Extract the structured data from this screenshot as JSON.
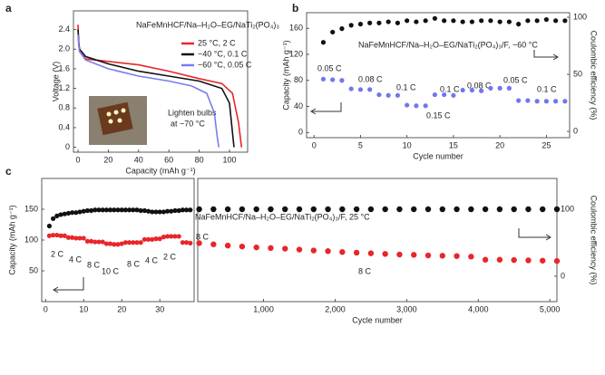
{
  "chart_data": [
    {
      "type": "line",
      "panel": "a",
      "xlabel": "Capacity (mAh g⁻¹)",
      "ylabel": "Voltage (V)",
      "xlim": [
        -3,
        112
      ],
      "xticks": [
        0,
        20,
        40,
        60,
        80,
        100
      ],
      "ylim": [
        -0.1,
        2.78
      ],
      "yticks": [
        0,
        0.4,
        0.8,
        1.2,
        1.6,
        {
          "value": 2,
          "label": "2.0"
        },
        2.4
      ],
      "annotations": [
        "NaFeMnHCF/Na–H₂O–EG/NaTi₂(PO₄)₃",
        "Lighten bulbs",
        "at −70 °C"
      ],
      "series": [
        {
          "name": "25 °C, 2 C",
          "color": "#e8262a",
          "x": [
            0,
            0.5,
            1,
            5,
            20,
            40,
            60,
            80,
            95,
            102,
            106,
            108
          ],
          "values": [
            2.5,
            2.1,
            1.95,
            1.8,
            1.75,
            1.68,
            1.55,
            1.4,
            1.3,
            1.1,
            0.5,
            0
          ]
        },
        {
          "name": "−40 °C, 0.1 C",
          "color": "#111111",
          "x": [
            0,
            0.5,
            1,
            5,
            20,
            40,
            60,
            80,
            95,
            100,
            102,
            103
          ],
          "values": [
            2.4,
            2.15,
            2.0,
            1.85,
            1.7,
            1.55,
            1.45,
            1.35,
            1.2,
            0.9,
            0.3,
            0
          ]
        },
        {
          "name": "−60 °C, 0.05 C",
          "color": "#7b7bf0",
          "x": [
            0,
            0.5,
            1,
            5,
            20,
            40,
            60,
            75,
            85,
            90,
            92,
            93
          ],
          "values": [
            2.3,
            2.1,
            1.95,
            1.78,
            1.6,
            1.45,
            1.35,
            1.25,
            1.1,
            0.7,
            0.2,
            0
          ]
        }
      ]
    },
    {
      "type": "scatter",
      "panel": "b",
      "xlabel": "Cycle number",
      "ylabel": "Capacity (mAh g⁻¹)",
      "y2label": "Coulombic efficiency (%)",
      "annotations": [
        "NaFeMnHCF/Na–H₂O–EG/NaTi₂(PO₄)₃/F, −60 °C"
      ],
      "rate_labels": [
        "0.05 C",
        "0.08 C",
        "0.1 C",
        "0.15 C",
        "0.1 C",
        "0.08 C",
        "0.05 C",
        "0.1 C"
      ],
      "xlim": [
        -0.8,
        27.5
      ],
      "xticks": [
        0,
        5,
        10,
        15,
        20,
        25
      ],
      "ylim": [
        -8,
        184
      ],
      "yticks": [
        0,
        40,
        80,
        120,
        160
      ],
      "y2lim": [
        -5.5,
        104
      ],
      "y2ticks": [
        0,
        50,
        100
      ],
      "series": [
        {
          "name": "Capacity",
          "color": "#6f78ee",
          "axis": "y",
          "x": [
            1,
            2,
            3,
            4,
            5,
            6,
            7,
            8,
            9,
            10,
            11,
            12,
            13,
            14,
            15,
            16,
            17,
            18,
            19,
            20,
            21,
            22,
            23,
            24,
            25,
            26,
            27
          ],
          "values": [
            82,
            81,
            80,
            67,
            66,
            66,
            58,
            57,
            57,
            42,
            41,
            41,
            58,
            58,
            57,
            65,
            65,
            64,
            68,
            68,
            68,
            49,
            49,
            48,
            48,
            48,
            48
          ]
        },
        {
          "name": "Coulombic efficiency",
          "color": "#111111",
          "axis": "y2",
          "x": [
            1,
            2,
            3,
            4,
            5,
            6,
            7,
            8,
            9,
            10,
            11,
            12,
            13,
            14,
            15,
            16,
            17,
            18,
            19,
            20,
            21,
            22,
            23,
            24,
            25,
            26,
            27
          ],
          "values": [
            78,
            87,
            90,
            93,
            94,
            95,
            95,
            96,
            95,
            97,
            96,
            97,
            99,
            97,
            97,
            96,
            96,
            97,
            97,
            96,
            96,
            94,
            97,
            97,
            98,
            97,
            97
          ]
        }
      ]
    },
    {
      "type": "scatter",
      "panel": "c",
      "ylabel": "Capacity (mAh g⁻¹)",
      "rate_labels": [
        "2 C",
        "4 C",
        "8 C",
        "10 C",
        "8 C",
        "4 C",
        "2 C"
      ],
      "xlim": [
        -1,
        39
      ],
      "xticks": [
        0,
        10,
        20,
        30
      ],
      "ylim": [
        0,
        200
      ],
      "yticks": [
        50,
        100,
        150
      ],
      "y2lim": [
        -38,
        146
      ],
      "series": [
        {
          "name": "Capacity",
          "color": "#e8262a",
          "axis": "y",
          "x": [
            1,
            2,
            3,
            4,
            5,
            6,
            7,
            8,
            9,
            10,
            11,
            12,
            13,
            14,
            15,
            16,
            17,
            18,
            19,
            20,
            21,
            22,
            23,
            24,
            25,
            26,
            27,
            28,
            29,
            30,
            31,
            32,
            33,
            34,
            35,
            36,
            37,
            38
          ],
          "values": [
            107,
            108,
            108,
            107,
            107,
            104,
            104,
            103,
            103,
            103,
            98,
            98,
            97,
            97,
            97,
            94,
            94,
            93,
            93,
            94,
            96,
            96,
            96,
            96,
            96,
            101,
            101,
            101,
            102,
            102,
            105,
            106,
            106,
            106,
            106,
            96,
            96,
            95
          ]
        },
        {
          "name": "Coulombic efficiency",
          "color": "#111111",
          "axis": "y2",
          "x": [
            1,
            2,
            3,
            4,
            5,
            6,
            7,
            8,
            9,
            10,
            11,
            12,
            13,
            14,
            15,
            16,
            17,
            18,
            19,
            20,
            21,
            22,
            23,
            24,
            25,
            26,
            27,
            28,
            29,
            30,
            31,
            32,
            33,
            34,
            35,
            36,
            37,
            38
          ],
          "values": [
            75,
            86,
            90,
            92,
            93,
            94,
            95,
            95,
            96,
            97,
            98,
            98,
            99,
            99,
            99,
            99,
            99,
            99,
            99,
            99,
            99,
            99,
            99,
            99,
            98,
            98,
            97,
            96,
            96,
            96,
            96,
            97,
            97,
            98,
            98,
            99,
            99,
            99
          ]
        }
      ]
    },
    {
      "type": "scatter",
      "xlabel": "Cycle number",
      "y2label": "Coulombic efficiency (%)",
      "annotations": [
        "NaFeMnHCF/Na–H₂O–EG/NaTi₂(PO₄)₃/F, 25 °C"
      ],
      "rate_labels": [
        "8 C",
        "8 C"
      ],
      "xlim": [
        80,
        5100
      ],
      "xticks": [
        {
          "value": 1000,
          "label": "1,000"
        },
        {
          "value": 2000,
          "label": "2,000"
        },
        {
          "value": 3000,
          "label": "3,000"
        },
        {
          "value": 4000,
          "label": "4,000"
        },
        {
          "value": 5000,
          "label": "5,000"
        }
      ],
      "ylim": [
        0,
        200
      ],
      "y2lim": [
        -38,
        146
      ],
      "y2ticks": [
        0,
        100
      ],
      "series": [
        {
          "name": "Capacity",
          "color": "#e8262a",
          "axis": "y",
          "x": [
            100,
            300,
            500,
            700,
            900,
            1100,
            1300,
            1500,
            1700,
            1900,
            2100,
            2300,
            2500,
            2700,
            2900,
            3100,
            3300,
            3500,
            3700,
            3900,
            4100,
            4300,
            4500,
            4700,
            4900,
            5100
          ],
          "values": [
            95,
            93,
            91,
            89.5,
            88,
            87,
            86,
            84.5,
            83,
            82,
            80.5,
            79.5,
            78.5,
            77.5,
            76.5,
            76,
            75,
            74.5,
            74,
            73,
            68,
            68,
            67.5,
            67,
            66.5,
            66
          ]
        },
        {
          "name": "Coulombic efficiency",
          "color": "#111111",
          "axis": "y2",
          "x": [
            100,
            300,
            500,
            700,
            900,
            1100,
            1300,
            1500,
            1700,
            1900,
            2100,
            2300,
            2500,
            2700,
            2900,
            3100,
            3300,
            3500,
            3700,
            3900,
            4100,
            4300,
            4500,
            4700,
            4900,
            5100
          ],
          "values": [
            100,
            100,
            100,
            100,
            100,
            100,
            100,
            100,
            100,
            100,
            100,
            100,
            100,
            100,
            100,
            100,
            100,
            100,
            100,
            100,
            100,
            100,
            100,
            100,
            100,
            100
          ]
        }
      ]
    }
  ]
}
